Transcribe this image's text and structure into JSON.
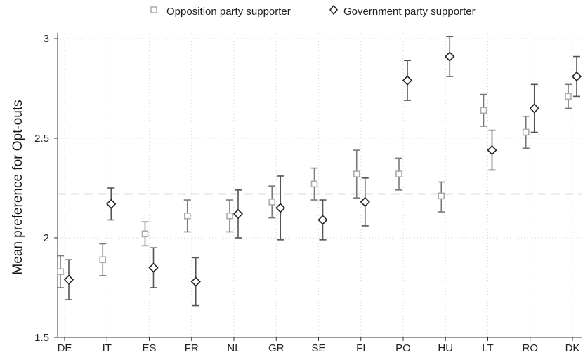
{
  "chart_data": {
    "type": "scatter",
    "title": "",
    "xlabel": "",
    "ylabel": "Mean preference for Opt-outs",
    "categories": [
      "DE",
      "IT",
      "ES",
      "FR",
      "NL",
      "GR",
      "SE",
      "FI",
      "PO",
      "HU",
      "LT",
      "RO",
      "DK"
    ],
    "ylim": [
      1.5,
      3.0
    ],
    "yticks": [
      1.5,
      2,
      2.5,
      3
    ],
    "ytick_labels": [
      "1.5",
      "2",
      "2.5",
      "3"
    ],
    "reference_line": 2.22,
    "grid": true,
    "legend_position": "top-center",
    "series": [
      {
        "name": "Opposition party supporter",
        "marker": "square",
        "color": "#aaaaaa",
        "values": [
          1.83,
          1.89,
          2.02,
          2.11,
          2.11,
          2.18,
          2.27,
          2.32,
          2.32,
          2.21,
          2.64,
          2.53,
          2.71
        ],
        "ci_low": [
          1.75,
          1.81,
          1.96,
          2.03,
          2.03,
          2.1,
          2.19,
          2.2,
          2.24,
          2.13,
          2.56,
          2.45,
          2.65
        ],
        "ci_high": [
          1.91,
          1.97,
          2.08,
          2.19,
          2.19,
          2.26,
          2.35,
          2.44,
          2.4,
          2.28,
          2.72,
          2.61,
          2.77
        ]
      },
      {
        "name": "Government party supporter",
        "marker": "diamond",
        "color": "#222222",
        "values": [
          1.79,
          2.17,
          1.85,
          1.78,
          2.12,
          2.15,
          2.09,
          2.18,
          2.79,
          2.91,
          2.44,
          2.65,
          2.81
        ],
        "ci_low": [
          1.69,
          2.09,
          1.75,
          1.66,
          2.0,
          1.99,
          1.99,
          2.06,
          2.69,
          2.81,
          2.34,
          2.53,
          2.71
        ],
        "ci_high": [
          1.89,
          2.25,
          1.95,
          1.9,
          2.24,
          2.31,
          2.19,
          2.3,
          2.89,
          3.01,
          2.54,
          2.77,
          2.91
        ]
      }
    ]
  }
}
